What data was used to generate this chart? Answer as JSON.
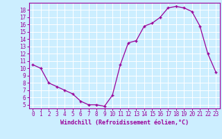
{
  "x": [
    0,
    1,
    2,
    3,
    4,
    5,
    6,
    7,
    8,
    9,
    10,
    11,
    12,
    13,
    14,
    15,
    16,
    17,
    18,
    19,
    20,
    21,
    22,
    23
  ],
  "y": [
    10.5,
    10.0,
    8.0,
    7.5,
    7.0,
    6.5,
    5.5,
    5.0,
    5.0,
    4.8,
    6.3,
    10.5,
    13.5,
    13.8,
    15.8,
    16.2,
    17.0,
    18.3,
    18.5,
    18.3,
    17.8,
    15.8,
    12.0,
    9.5
  ],
  "line_color": "#990099",
  "marker": "+",
  "bg_color": "#cceeff",
  "grid_color": "#ffffff",
  "xlabel": "Windchill (Refroidissement éolien,°C)",
  "yticks": [
    5,
    6,
    7,
    8,
    9,
    10,
    11,
    12,
    13,
    14,
    15,
    16,
    17,
    18
  ],
  "xlim": [
    -0.5,
    23.5
  ],
  "ylim": [
    4.5,
    19.0
  ],
  "tick_color": "#990099",
  "label_color": "#990099",
  "spine_color": "#990099",
  "tick_fontsize": 5.5,
  "xlabel_fontsize": 6.0
}
